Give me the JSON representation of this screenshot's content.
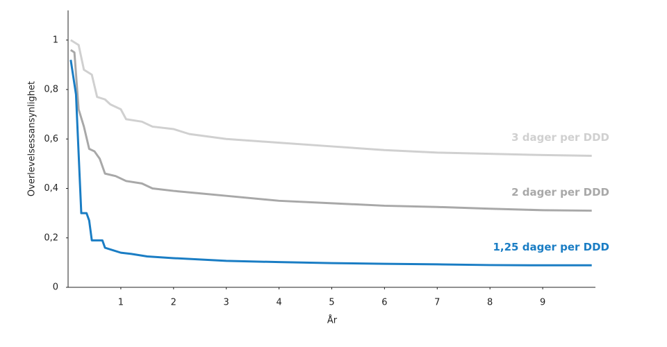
{
  "chart_data": {
    "type": "line",
    "x_label": "År",
    "y_label": "Overlevelsessansynlighet",
    "xlim": [
      0,
      10
    ],
    "ylim": [
      0,
      1.12
    ],
    "xticks": [
      1,
      2,
      3,
      4,
      5,
      6,
      7,
      8,
      9
    ],
    "yticks": [
      0,
      {
        "value": 0.2,
        "label": "0,2"
      },
      {
        "value": 0.4,
        "label": "0,4"
      },
      {
        "value": 0.6,
        "label": "0,6"
      },
      {
        "value": 0.8,
        "label": "0,8"
      },
      1
    ],
    "series": [
      {
        "name": "3 dager per DDD",
        "color": "#d0d0d0",
        "x": [
          0.05,
          0.2,
          0.3,
          0.45,
          0.55,
          0.7,
          0.8,
          1.0,
          1.1,
          1.4,
          1.6,
          2,
          2.3,
          3,
          4,
          5,
          6,
          7,
          8,
          9,
          9.93
        ],
        "values": [
          1.0,
          0.98,
          0.88,
          0.86,
          0.77,
          0.76,
          0.74,
          0.72,
          0.68,
          0.67,
          0.65,
          0.64,
          0.62,
          0.6,
          0.585,
          0.57,
          0.555,
          0.545,
          0.54,
          0.535,
          0.532
        ]
      },
      {
        "name": "2 dager per DDD",
        "color": "#a8a8a8",
        "x": [
          0.05,
          0.12,
          0.2,
          0.3,
          0.4,
          0.5,
          0.6,
          0.7,
          0.9,
          1.1,
          1.4,
          1.6,
          2,
          2.5,
          3,
          4,
          5,
          6,
          7,
          8,
          9,
          9.93
        ],
        "values": [
          0.96,
          0.95,
          0.72,
          0.65,
          0.56,
          0.55,
          0.52,
          0.46,
          0.45,
          0.43,
          0.42,
          0.4,
          0.39,
          0.38,
          0.37,
          0.35,
          0.34,
          0.33,
          0.325,
          0.318,
          0.312,
          0.31
        ]
      },
      {
        "name": "1,25 dager per DDD",
        "color": "#1a7dc4",
        "x": [
          0.05,
          0.15,
          0.25,
          0.35,
          0.4,
          0.45,
          0.65,
          0.7,
          0.85,
          1.0,
          1.2,
          1.5,
          2,
          3,
          4,
          5,
          6,
          7,
          8,
          9,
          9.93
        ],
        "values": [
          0.92,
          0.78,
          0.3,
          0.3,
          0.27,
          0.19,
          0.19,
          0.16,
          0.15,
          0.14,
          0.135,
          0.125,
          0.118,
          0.107,
          0.102,
          0.098,
          0.095,
          0.093,
          0.09,
          0.089,
          0.089
        ]
      }
    ]
  }
}
